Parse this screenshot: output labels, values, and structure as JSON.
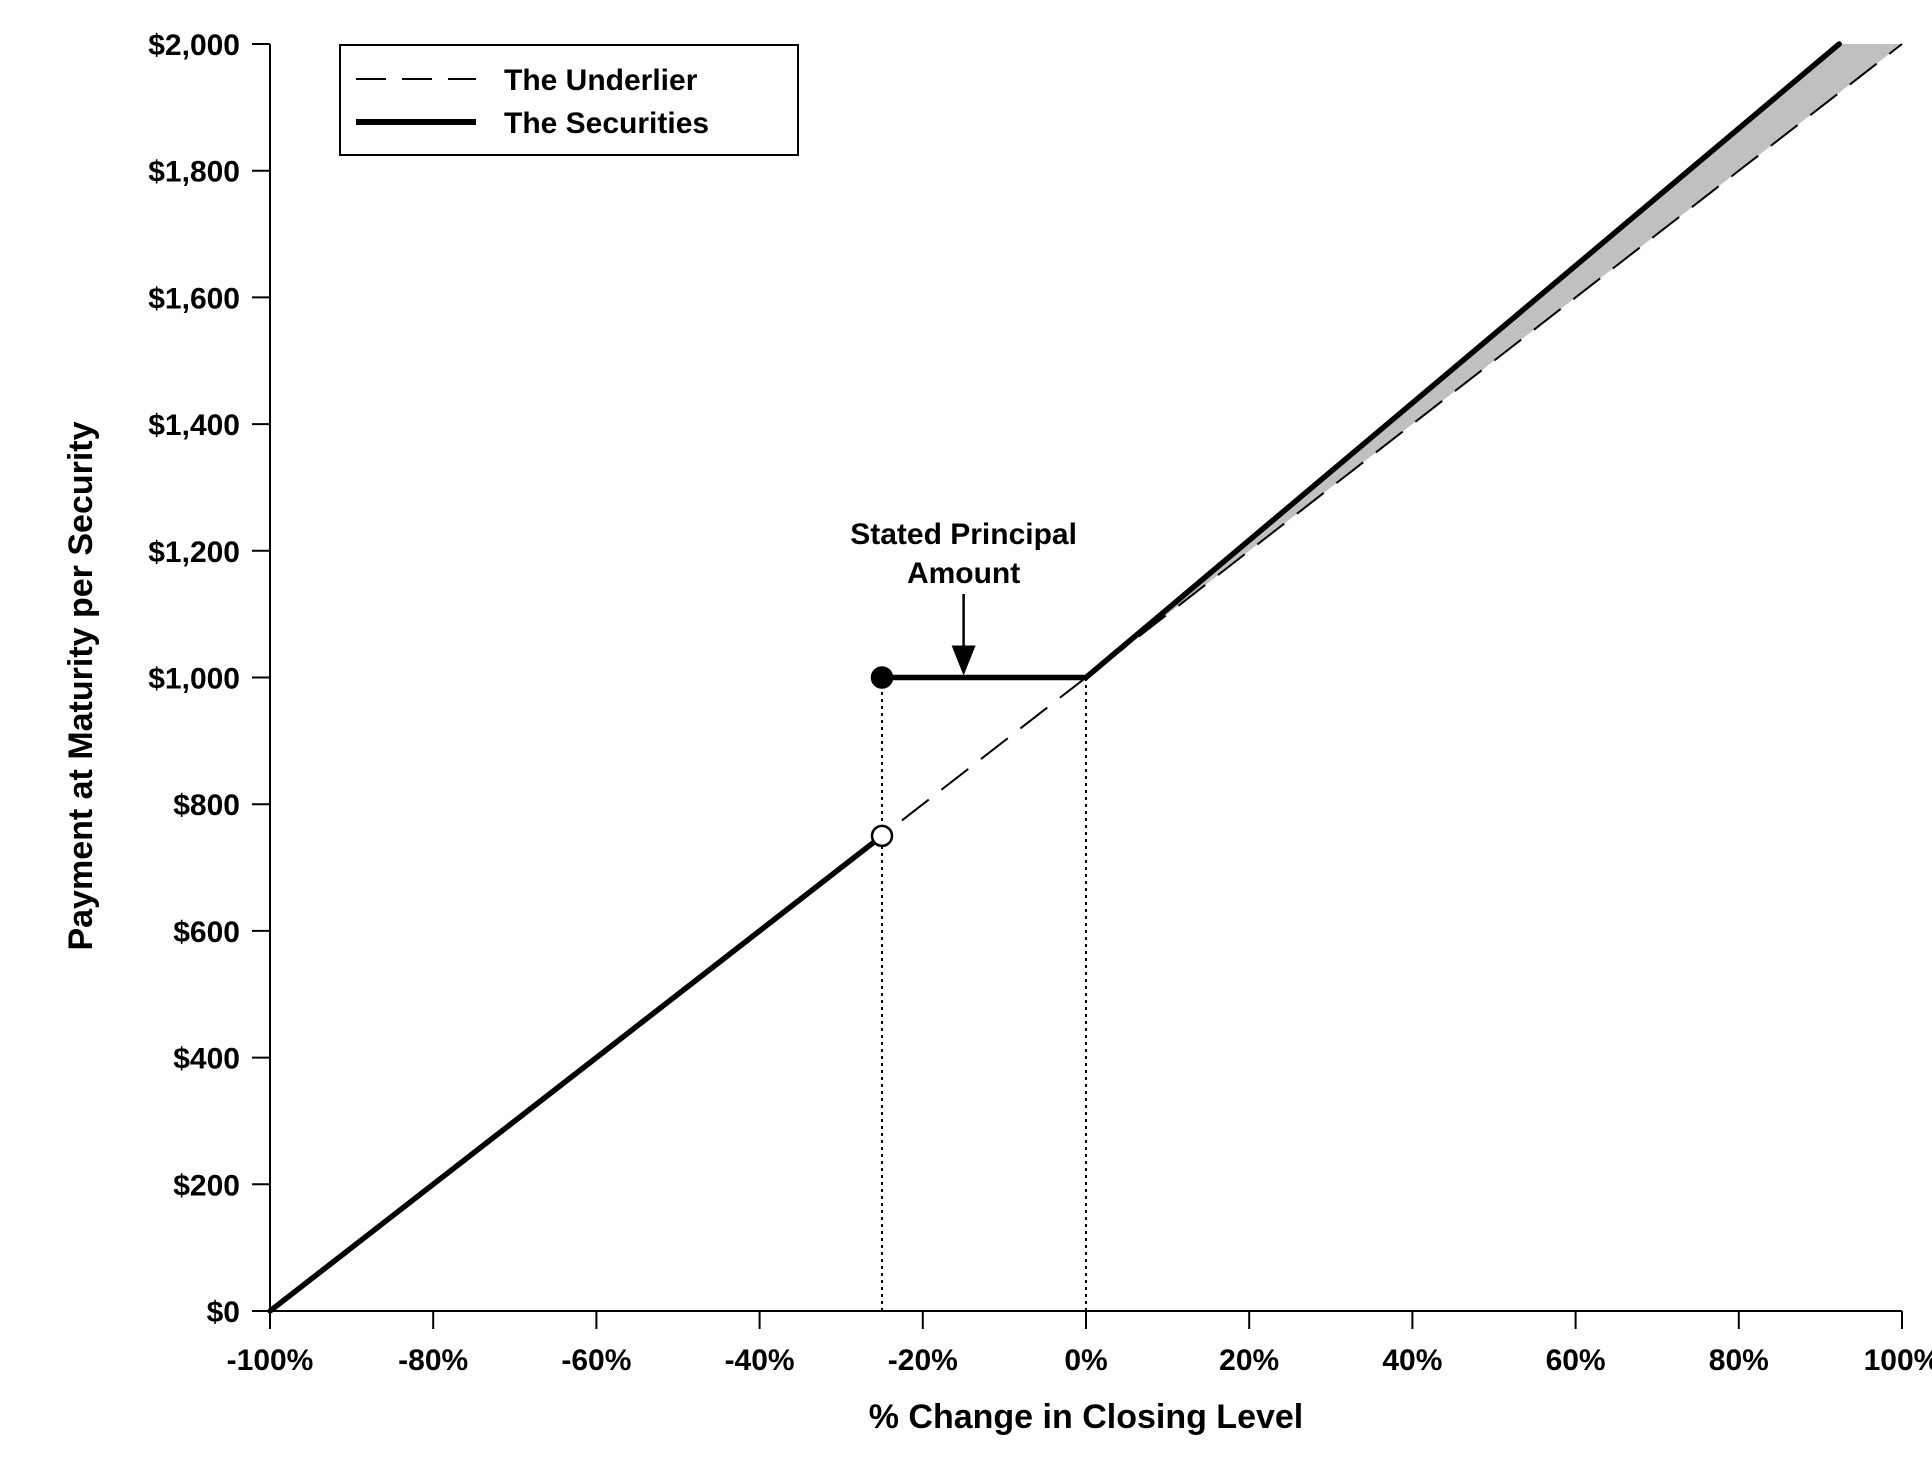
{
  "chart_data": {
    "type": "line",
    "title": "",
    "xlabel": "% Change in Closing Level",
    "ylabel": "Payment at Maturity per Security",
    "xlim": [
      -100,
      100
    ],
    "ylim": [
      0,
      2000
    ],
    "grid": false,
    "legend_position": "top-left",
    "x_ticks": [
      {
        "value": -100,
        "label": "-100%"
      },
      {
        "value": -80,
        "label": "-80%"
      },
      {
        "value": -60,
        "label": "-60%"
      },
      {
        "value": -40,
        "label": "-40%"
      },
      {
        "value": -20,
        "label": "-20%"
      },
      {
        "value": 0,
        "label": "0%"
      },
      {
        "value": 20,
        "label": "20%"
      },
      {
        "value": 40,
        "label": "40%"
      },
      {
        "value": 60,
        "label": "60%"
      },
      {
        "value": 80,
        "label": "80%"
      },
      {
        "value": 100,
        "label": "100%"
      }
    ],
    "y_ticks": [
      {
        "value": 0,
        "label": "$0"
      },
      {
        "value": 200,
        "label": "$200"
      },
      {
        "value": 400,
        "label": "$400"
      },
      {
        "value": 600,
        "label": "$600"
      },
      {
        "value": 800,
        "label": "$800"
      },
      {
        "value": 1000,
        "label": "$1,000"
      },
      {
        "value": 1200,
        "label": "$1,200"
      },
      {
        "value": 1400,
        "label": "$1,400"
      },
      {
        "value": 1600,
        "label": "$1,600"
      },
      {
        "value": 1800,
        "label": "$1,800"
      },
      {
        "value": 2000,
        "label": "$2,000"
      }
    ],
    "series": [
      {
        "name": "The Underlier",
        "style": "dashed",
        "color": "#000000",
        "points": [
          [
            -100,
            0
          ],
          [
            100,
            2000
          ]
        ]
      },
      {
        "name": "The Securities",
        "style": "solid-thick",
        "color": "#000000",
        "segments": [
          [
            [
              -100,
              0
            ],
            [
              -25,
              750
            ]
          ],
          [
            [
              -25,
              1000
            ],
            [
              0,
              1000
            ]
          ],
          [
            [
              0,
              1000
            ],
            [
              92.3,
              2000
            ]
          ]
        ]
      }
    ],
    "markers": [
      {
        "x": -25,
        "y": 1000,
        "style": "filled"
      },
      {
        "x": -25,
        "y": 750,
        "style": "open"
      }
    ],
    "reference_lines": [
      {
        "x": -25,
        "y_from": 0,
        "y_to": 1000,
        "style": "dotted"
      },
      {
        "x": 0,
        "y_from": 0,
        "y_to": 1000,
        "style": "dotted"
      }
    ],
    "shaded_region": {
      "color": "#c0c0c0",
      "between": [
        "The Securities",
        "The Underlier"
      ],
      "x_range": [
        0,
        100
      ]
    },
    "annotation": {
      "lines": [
        "Stated Principal",
        "Amount"
      ],
      "arrow_target": {
        "x": -15,
        "y": 1000
      }
    },
    "legend": [
      {
        "name": "The Underlier",
        "style": "dashed"
      },
      {
        "name": "The Securities",
        "style": "solid-thick"
      }
    ]
  }
}
